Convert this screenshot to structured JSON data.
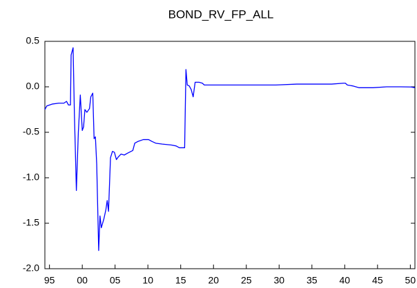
{
  "chart_data": {
    "type": "line",
    "title": "BOND_RV_FP_ALL",
    "x": [
      1994.3,
      1994.6,
      1995.4,
      1996.4,
      1997.2,
      1997.6,
      1997.9,
      1998.2,
      1998.3,
      1998.6,
      1998.8,
      1999.1,
      1999.4,
      1999.7,
      2000.0,
      2000.2,
      2000.4,
      2000.7,
      2001.1,
      2001.3,
      2001.6,
      2001.8,
      2002.0,
      2002.2,
      2002.5,
      2002.7,
      2002.9,
      2003.3,
      2003.6,
      2003.8,
      2004.0,
      2004.3,
      2004.6,
      2004.9,
      2005.2,
      2005.5,
      2005.9,
      2006.4,
      2006.9,
      2007.7,
      2008.0,
      2008.5,
      2009.3,
      2010.1,
      2010.6,
      2011.2,
      2012.2,
      2013.6,
      2014.3,
      2014.8,
      2015.6,
      2015.8,
      2016.0,
      2016.3,
      2016.6,
      2016.9,
      2017.2,
      2017.8,
      2018.3,
      2018.6,
      2020.1,
      2024.3,
      2029.5,
      2032.7,
      2038.0,
      2039.8,
      2040.1,
      2040.4,
      2041.2,
      2042.2,
      2044.3,
      2046.4,
      2048.5,
      2050.1,
      2050.7
    ],
    "series": [
      {
        "color": "#0000ff",
        "values": [
          -0.25,
          -0.21,
          -0.19,
          -0.18,
          -0.18,
          -0.16,
          -0.2,
          -0.2,
          0.35,
          0.43,
          -0.3,
          -1.14,
          -0.5,
          -0.09,
          -0.48,
          -0.44,
          -0.25,
          -0.28,
          -0.24,
          -0.11,
          -0.07,
          -0.57,
          -0.55,
          -0.85,
          -1.8,
          -1.42,
          -1.55,
          -1.45,
          -1.35,
          -1.25,
          -1.37,
          -0.78,
          -0.71,
          -0.72,
          -0.8,
          -0.77,
          -0.74,
          -0.75,
          -0.73,
          -0.7,
          -0.62,
          -0.6,
          -0.58,
          -0.58,
          -0.6,
          -0.62,
          -0.63,
          -0.64,
          -0.65,
          -0.67,
          -0.67,
          0.19,
          0.02,
          0.01,
          -0.03,
          -0.11,
          0.05,
          0.05,
          0.04,
          0.02,
          0.02,
          0.02,
          0.02,
          0.03,
          0.03,
          0.04,
          0.04,
          0.02,
          0.01,
          -0.01,
          -0.01,
          0.0,
          0.0,
          -0.002,
          -0.01
        ]
      }
    ],
    "xlim": [
      1994.3,
      2050.7
    ],
    "xticks": [
      {
        "value": 1995,
        "label": "95"
      },
      {
        "value": 2000,
        "label": "00"
      },
      {
        "value": 2005,
        "label": "05"
      },
      {
        "value": 2010,
        "label": "10"
      },
      {
        "value": 2015,
        "label": "15"
      },
      {
        "value": 2020,
        "label": "20"
      },
      {
        "value": 2025,
        "label": "25"
      },
      {
        "value": 2030,
        "label": "30"
      },
      {
        "value": 2035,
        "label": "35"
      },
      {
        "value": 2040,
        "label": "40"
      },
      {
        "value": 2045,
        "label": "45"
      },
      {
        "value": 2050,
        "label": "50"
      }
    ],
    "ylim": [
      -2.0,
      0.5
    ],
    "yticks": [
      0.5,
      {
        "value": 0.0,
        "label": "0.0"
      },
      -0.5,
      {
        "value": -1.0,
        "label": "-1.0"
      },
      -1.5,
      {
        "value": -2.0,
        "label": "-2.0"
      }
    ],
    "grid": false
  }
}
